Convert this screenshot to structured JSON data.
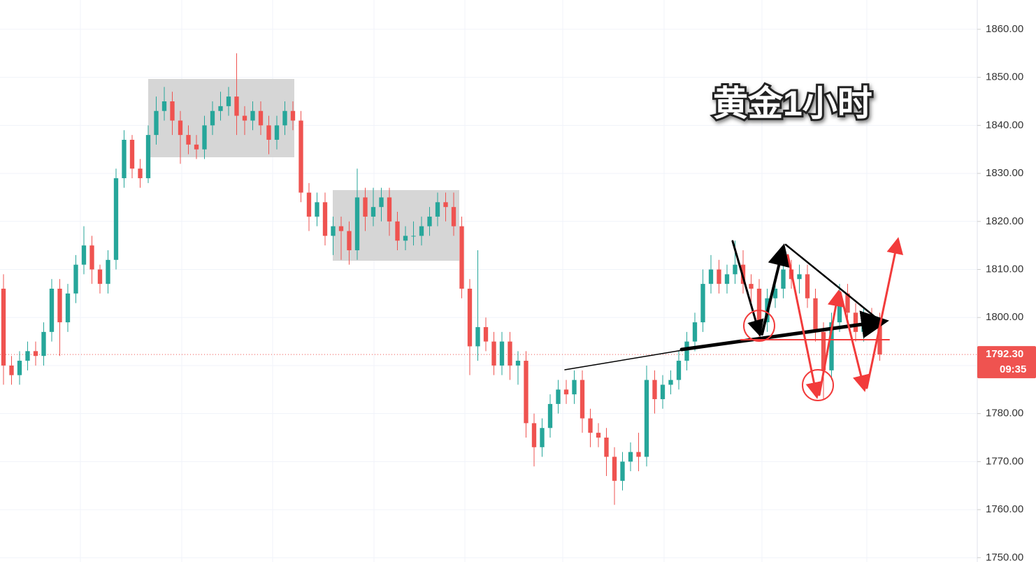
{
  "chart_data": {
    "type": "candlestick",
    "title": "黄金1小时",
    "ylim": [
      1749.1,
      1866.1
    ],
    "yticks": [
      {
        "value": 1750,
        "label": "1750.00"
      },
      {
        "value": 1760,
        "label": "1760.00"
      },
      {
        "value": 1770,
        "label": "1770.00"
      },
      {
        "value": 1780,
        "label": "1780.00"
      },
      {
        "value": 1790,
        "label": "1790.00"
      },
      {
        "value": 1800,
        "label": "1800.00"
      },
      {
        "value": 1810,
        "label": "1810.00"
      },
      {
        "value": 1820,
        "label": "1820.00"
      },
      {
        "value": 1830,
        "label": "1830.00"
      },
      {
        "value": 1840,
        "label": "1840.00"
      },
      {
        "value": 1850,
        "label": "1850.00"
      },
      {
        "value": 1860,
        "label": "1860.00"
      }
    ],
    "grid": true,
    "up_color": "#26a69a",
    "down_color": "#ef5350",
    "last_price": {
      "value": 1792.3,
      "label": "1792.30"
    },
    "countdown": "09:35",
    "open": [
      1806,
      1790,
      1788,
      1791,
      1793,
      1792,
      1797,
      1806,
      1799,
      1805,
      1811,
      1815,
      1810,
      1807,
      1812,
      1829,
      1837,
      1831,
      1829,
      1838,
      1843,
      1845,
      1841,
      1838,
      1836,
      1835,
      1840,
      1843,
      1844,
      1846,
      1842,
      1841,
      1843,
      1840,
      1837,
      1840,
      1843,
      1841,
      1826,
      1821,
      1824,
      1817,
      1819,
      1818,
      1814,
      1825,
      1821,
      1823,
      1825,
      1820,
      1816,
      1817,
      1817,
      1819,
      1821,
      1824,
      1823,
      1819,
      1806,
      1794,
      1798,
      1795,
      1790,
      1795,
      1790,
      1791,
      1778,
      1773,
      1777,
      1782,
      1785,
      1784,
      1787,
      1779,
      1776,
      1775,
      1771,
      1766,
      1770,
      1772,
      1771,
      1787,
      1783,
      1786,
      1787,
      1791,
      1795,
      1799,
      1807,
      1810,
      1807,
      1809,
      1811,
      1807,
      1806,
      1799,
      1804,
      1806,
      1810,
      1808,
      1809,
      1804,
      1797,
      1789,
      1799,
      1805,
      1801,
      1797,
      1800,
      1799
    ],
    "high": [
      1809,
      1792,
      1793,
      1795,
      1795,
      1799,
      1808,
      1808,
      1807,
      1813,
      1819,
      1817,
      1811,
      1814,
      1831,
      1839,
      1838,
      1833,
      1840,
      1846,
      1848,
      1847,
      1843,
      1840,
      1838,
      1842,
      1845,
      1847,
      1848,
      1855,
      1844,
      1845,
      1845,
      1842,
      1842,
      1845,
      1845,
      1843,
      1828,
      1826,
      1826,
      1821,
      1821,
      1820,
      1831,
      1827,
      1827,
      1827,
      1827,
      1822,
      1819,
      1820,
      1821,
      1823,
      1826,
      1826,
      1826,
      1821,
      1808,
      1814,
      1800,
      1797,
      1797,
      1797,
      1793,
      1793,
      1780,
      1779,
      1784,
      1787,
      1787,
      1789,
      1789,
      1781,
      1778,
      1777,
      1773,
      1772,
      1774,
      1776,
      1790,
      1789,
      1788,
      1789,
      1793,
      1797,
      1801,
      1810,
      1813,
      1812,
      1811,
      1816,
      1814,
      1809,
      1808,
      1806,
      1808,
      1815,
      1812,
      1811,
      1811,
      1806,
      1799,
      1801,
      1807,
      1807,
      1803,
      1802,
      1802,
      1801
    ],
    "low": [
      1786,
      1786,
      1786,
      1789,
      1790,
      1790,
      1795,
      1792,
      1797,
      1803,
      1809,
      1807,
      1805,
      1805,
      1810,
      1827,
      1829,
      1827,
      1828,
      1836,
      1841,
      1838,
      1832,
      1834,
      1833,
      1833,
      1838,
      1841,
      1842,
      1838,
      1838,
      1839,
      1838,
      1834,
      1835,
      1838,
      1839,
      1824,
      1818,
      1819,
      1815,
      1813,
      1812,
      1811,
      1812,
      1818,
      1819,
      1820,
      1817,
      1814,
      1814,
      1815,
      1815,
      1817,
      1819,
      1820,
      1817,
      1804,
      1788,
      1791,
      1793,
      1788,
      1788,
      1787,
      1786,
      1775,
      1769,
      1771,
      1775,
      1780,
      1782,
      1782,
      1776,
      1773,
      1773,
      1767,
      1761,
      1764,
      1768,
      1768,
      1769,
      1780,
      1781,
      1784,
      1785,
      1789,
      1793,
      1797,
      1805,
      1805,
      1805,
      1807,
      1805,
      1803,
      1795,
      1797,
      1802,
      1804,
      1806,
      1805,
      1802,
      1795,
      1783,
      1787,
      1797,
      1799,
      1795,
      1795,
      1797,
      1791
    ],
    "close": [
      1790,
      1788,
      1791,
      1793,
      1792,
      1797,
      1806,
      1799,
      1805,
      1811,
      1815,
      1810,
      1807,
      1812,
      1829,
      1837,
      1831,
      1829,
      1838,
      1843,
      1845,
      1841,
      1838,
      1836,
      1835,
      1840,
      1843,
      1844,
      1846,
      1842,
      1841,
      1843,
      1840,
      1837,
      1840,
      1843,
      1841,
      1826,
      1821,
      1824,
      1817,
      1819,
      1818,
      1814,
      1825,
      1821,
      1823,
      1825,
      1820,
      1816,
      1817,
      1817,
      1819,
      1821,
      1824,
      1823,
      1819,
      1806,
      1794,
      1798,
      1795,
      1790,
      1795,
      1790,
      1791,
      1778,
      1773,
      1777,
      1782,
      1785,
      1784,
      1787,
      1779,
      1776,
      1775,
      1771,
      1766,
      1770,
      1772,
      1771,
      1787,
      1783,
      1786,
      1787,
      1791,
      1795,
      1799,
      1807,
      1810,
      1807,
      1809,
      1811,
      1807,
      1806,
      1799,
      1804,
      1806,
      1810,
      1808,
      1809,
      1804,
      1797,
      1789,
      1799,
      1805,
      1801,
      1797,
      1800,
      1799,
      1792.3
    ]
  }
}
